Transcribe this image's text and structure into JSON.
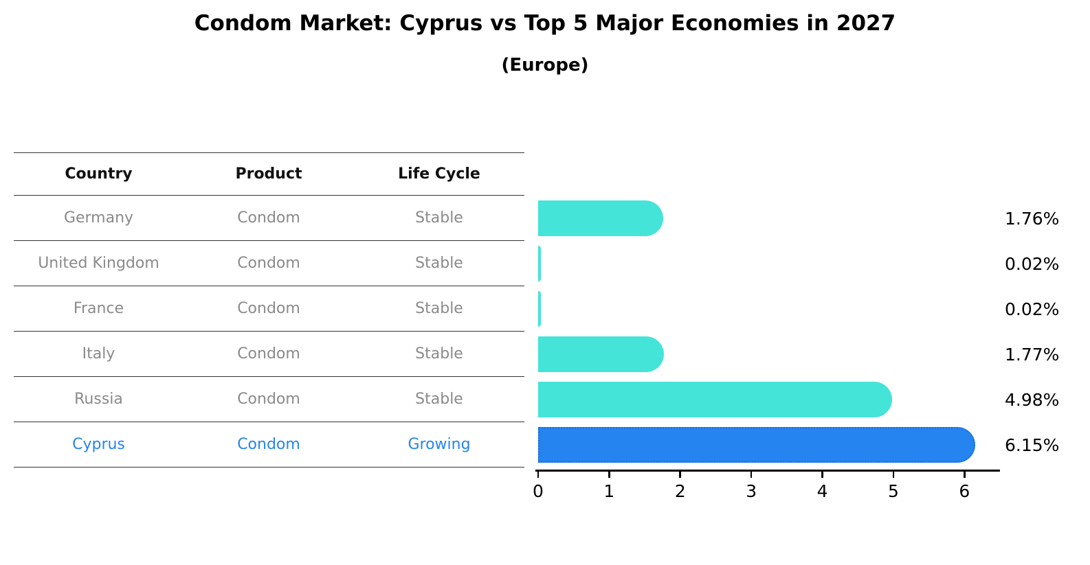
{
  "chart_data": {
    "type": "bar",
    "orientation": "horizontal",
    "title": "Condom Market: Cyprus vs Top 5 Major Economies in 2027",
    "subtitle": "(Europe)",
    "categories": [
      "Germany",
      "United Kingdom",
      "France",
      "Italy",
      "Russia",
      "Cyprus"
    ],
    "values": [
      1.76,
      0.02,
      0.02,
      1.77,
      4.98,
      6.15
    ],
    "value_labels": [
      "1.76%",
      "0.02%",
      "0.02%",
      "1.77%",
      "4.98%",
      "6.15%"
    ],
    "xlim": [
      0,
      6.5
    ],
    "x_ticks": [
      "0",
      "1",
      "2",
      "3",
      "4",
      "5",
      "6"
    ],
    "grid": false,
    "legend": false,
    "bar_color": "#44e4d8",
    "highlight_color": "#2584f0",
    "highlight_border_color": "#1a6ed8",
    "highlight_index": 5
  },
  "table": {
    "columns": [
      "Country",
      "Product",
      "Life Cycle"
    ],
    "rows": [
      {
        "country": "Germany",
        "product": "Condom",
        "life_cycle": "Stable"
      },
      {
        "country": "United Kingdom",
        "product": "Condom",
        "life_cycle": "Stable"
      },
      {
        "country": "France",
        "product": "Condom",
        "life_cycle": "Stable"
      },
      {
        "country": "Italy",
        "product": "Condom",
        "life_cycle": "Stable"
      },
      {
        "country": "Russia",
        "product": "Condom",
        "life_cycle": "Stable"
      },
      {
        "country": "Cyprus",
        "product": "Condom",
        "life_cycle": "Growing"
      }
    ]
  }
}
